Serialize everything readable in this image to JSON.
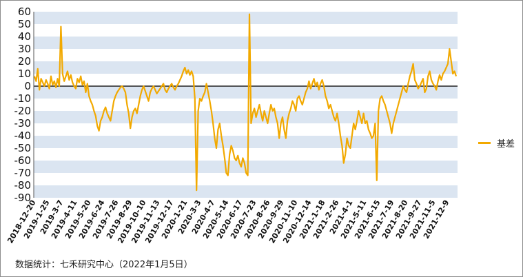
{
  "chart_data": {
    "type": "line",
    "title": "",
    "xlabel": "",
    "ylabel": "",
    "ylim": [
      -90,
      60
    ],
    "yticks": [
      60,
      50,
      40,
      30,
      20,
      10,
      0,
      -10,
      -20,
      -30,
      -40,
      -50,
      -60,
      -70,
      -80,
      -90
    ],
    "x_tick_labels": [
      "2018-12-20",
      "2019-1-25",
      "2019-3-7",
      "2019-4-11",
      "2019-5-20",
      "2019-6-24",
      "2019-7-26",
      "2019-8-29",
      "2019-10-10",
      "2019-11-13",
      "2019-12-17",
      "2020-1-21",
      "2020-3-3",
      "2020-4-7",
      "2020-5-14",
      "2020-6-17",
      "2020-7-23",
      "2020-8-26",
      "2020-9-29",
      "2020-11-10",
      "2020-12-14",
      "2021-1-18",
      "2021-2-26",
      "2021-4-1",
      "2021-5-11",
      "2021-6-15",
      "2021-7-19",
      "2021-8-20",
      "2021-9-27",
      "2021-11-5",
      "2021-12-9"
    ],
    "grid": "horizontal bands",
    "legend_position": "right",
    "series": [
      {
        "name": "基差",
        "color": "#f2a900",
        "values": [
          8,
          4,
          14,
          -3,
          6,
          3,
          0,
          5,
          2,
          -2,
          8,
          1,
          4,
          -1,
          6,
          0,
          48,
          10,
          4,
          8,
          12,
          5,
          9,
          3,
          0,
          -2,
          6,
          3,
          8,
          1,
          4,
          -5,
          2,
          -8,
          -12,
          -15,
          -20,
          -24,
          -32,
          -36,
          -28,
          -25,
          -20,
          -17,
          -22,
          -25,
          -28,
          -20,
          -12,
          -8,
          -5,
          -3,
          -1,
          0,
          -2,
          -5,
          -15,
          -22,
          -34,
          -25,
          -20,
          -18,
          -22,
          -15,
          -8,
          -3,
          0,
          -4,
          -8,
          -12,
          -5,
          -2,
          0,
          -3,
          -6,
          -4,
          -2,
          0,
          2,
          -3,
          -5,
          -2,
          0,
          2,
          -1,
          -3,
          0,
          2,
          5,
          8,
          12,
          15,
          10,
          13,
          9,
          12,
          8,
          -10,
          -84,
          -20,
          -10,
          -12,
          -8,
          -5,
          2,
          -5,
          -12,
          -20,
          -30,
          -42,
          -50,
          -35,
          -30,
          -40,
          -48,
          -58,
          -70,
          -72,
          -55,
          -48,
          -52,
          -58,
          -60,
          -56,
          -62,
          -65,
          -58,
          -62,
          -70,
          -72,
          58,
          -30,
          -22,
          -18,
          -25,
          -20,
          -15,
          -22,
          -28,
          -20,
          -25,
          -30,
          -22,
          -15,
          -20,
          -18,
          -25,
          -30,
          -42,
          -30,
          -25,
          -35,
          -42,
          -28,
          -22,
          -18,
          -12,
          -15,
          -20,
          -10,
          -8,
          -12,
          -15,
          -10,
          -5,
          -2,
          4,
          -2,
          2,
          6,
          0,
          3,
          -3,
          2,
          5,
          0,
          -8,
          -12,
          -18,
          -15,
          -20,
          -25,
          -28,
          -22,
          -30,
          -40,
          -48,
          -62,
          -55,
          -42,
          -48,
          -50,
          -40,
          -30,
          -35,
          -28,
          -20,
          -25,
          -30,
          -22,
          -30,
          -28,
          -35,
          -38,
          -42,
          -40,
          -30,
          -76,
          -20,
          -10,
          -8,
          -12,
          -15,
          -20,
          -25,
          -30,
          -38,
          -30,
          -25,
          -20,
          -15,
          -10,
          -5,
          0,
          -3,
          -5,
          2,
          8,
          12,
          18,
          5,
          2,
          -2,
          0,
          3,
          6,
          -5,
          -2,
          8,
          12,
          5,
          2,
          0,
          -3,
          4,
          9,
          5,
          10,
          12,
          15,
          18,
          30,
          20,
          10,
          12,
          8
        ]
      }
    ]
  },
  "legend": {
    "label": "基差",
    "color": "#f2a900"
  },
  "source_note": "数据统计：七禾研究中心（2022年1月5日）"
}
